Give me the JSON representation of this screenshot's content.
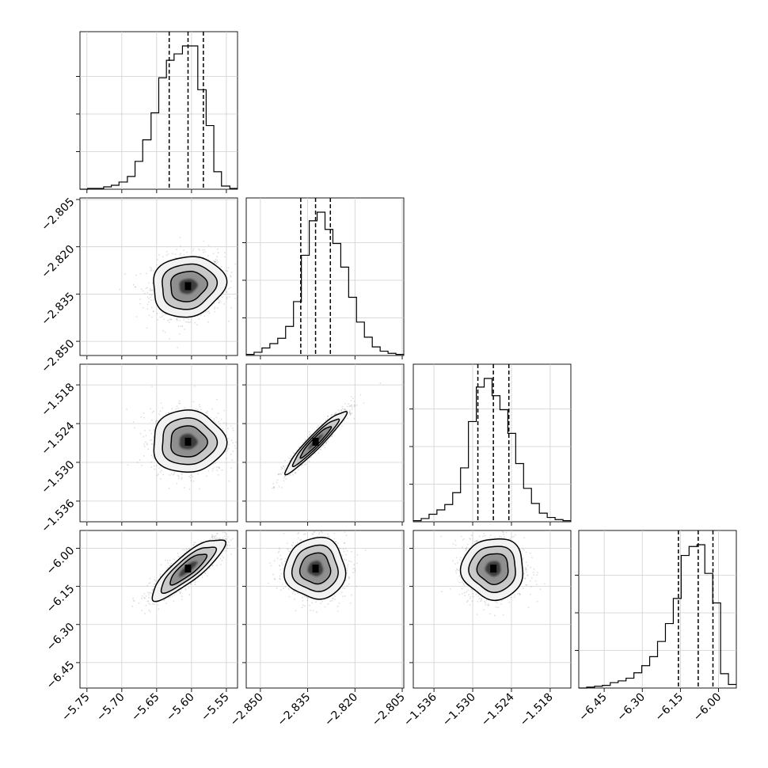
{
  "chart_data": {
    "type": "corner",
    "params": [
      {
        "ticks": [
          -5.75,
          -5.7,
          -5.65,
          -5.6,
          -5.55
        ],
        "tick_labels": [
          "−5.75",
          "−5.70",
          "−5.65",
          "−5.60",
          "−5.55"
        ],
        "range": [
          -5.76,
          -5.534
        ],
        "mean": -5.605,
        "sd": 0.026,
        "quantiles": [
          -5.632,
          -5.605,
          -5.583
        ]
      },
      {
        "ticks": [
          -2.85,
          -2.835,
          -2.82,
          -2.805
        ],
        "tick_labels": [
          "−2.850",
          "−2.835",
          "−2.820",
          "−2.805"
        ],
        "range": [
          -2.8545,
          -2.8045
        ],
        "mean": -2.8325,
        "sd": 0.0048,
        "quantiles": [
          -2.8372,
          -2.8325,
          -2.8278
        ]
      },
      {
        "ticks": [
          -1.536,
          -1.53,
          -1.524,
          -1.518
        ],
        "tick_labels": [
          "−1.536",
          "−1.530",
          "−1.524",
          "−1.518"
        ],
        "range": [
          -1.5392,
          -1.5148
        ],
        "mean": -1.5268,
        "sd": 0.0024,
        "quantiles": [
          -1.5292,
          -1.5268,
          -1.5244
        ]
      },
      {
        "ticks": [
          -6.45,
          -6.3,
          -6.15,
          -6.0
        ],
        "tick_labels": [
          "−6.45",
          "−6.30",
          "−6.15",
          "−6.00"
        ],
        "range": [
          -6.55,
          -5.93
        ],
        "mean": -6.08,
        "sd": 0.06,
        "quantiles": [
          -6.158,
          -6.08,
          -6.022
        ]
      }
    ],
    "histograms": [
      {
        "param": 0,
        "bin_edges": [
          -5.76,
          -5.749,
          -5.738,
          -5.726,
          -5.715,
          -5.704,
          -5.692,
          -5.681,
          -5.67,
          -5.658,
          -5.647,
          -5.636,
          -5.625,
          -5.613,
          -5.602,
          -5.591,
          -5.579,
          -5.568,
          -5.557,
          -5.545,
          -5.534
        ],
        "counts": [
          0,
          1,
          1,
          3,
          5,
          9,
          16,
          35,
          62,
          96,
          140,
          162,
          170,
          180,
          180,
          125,
          80,
          22,
          4,
          1
        ]
      },
      {
        "param": 1,
        "bin_edges": [
          -2.8545,
          -2.852,
          -2.8495,
          -2.847,
          -2.8445,
          -2.842,
          -2.8395,
          -2.837,
          -2.8345,
          -2.832,
          -2.8295,
          -2.827,
          -2.8245,
          -2.822,
          -2.8195,
          -2.817,
          -2.8145,
          -2.812,
          -2.8095,
          -2.807,
          -2.8045
        ],
        "counts": [
          1,
          3,
          7,
          11,
          16,
          27,
          50,
          93,
          125,
          133,
          117,
          104,
          82,
          54,
          31,
          17,
          8,
          4,
          2,
          1
        ]
      },
      {
        "param": 2,
        "bin_edges": [
          -1.5392,
          -1.53798,
          -1.53676,
          -1.53554,
          -1.53432,
          -1.5331,
          -1.53188,
          -1.53066,
          -1.52944,
          -1.52822,
          -1.527,
          -1.52578,
          -1.52456,
          -1.52334,
          -1.52212,
          -1.5209,
          -1.51968,
          -1.51846,
          -1.51724,
          -1.51602,
          -1.5148
        ],
        "counts": [
          1,
          3,
          7,
          11,
          16,
          27,
          50,
          93,
          125,
          133,
          117,
          104,
          82,
          54,
          31,
          17,
          8,
          4,
          2,
          1
        ]
      },
      {
        "param": 3,
        "bin_edges": [
          -6.55,
          -6.519,
          -6.488,
          -6.457,
          -6.426,
          -6.395,
          -6.364,
          -6.333,
          -6.302,
          -6.271,
          -6.24,
          -6.209,
          -6.178,
          -6.147,
          -6.116,
          -6.085,
          -6.054,
          -6.023,
          -5.992,
          -5.961,
          -5.93
        ],
        "counts": [
          0,
          1,
          2,
          3,
          6,
          8,
          11,
          17,
          25,
          35,
          52,
          72,
          100,
          148,
          158,
          160,
          128,
          95,
          16,
          4
        ]
      }
    ],
    "correlations": {
      "0-1": 0.1,
      "0-2": 0.0,
      "0-3": 0.85,
      "1-2": 0.95,
      "1-3": 0.0,
      "2-3": 0.0
    },
    "grid": true,
    "quantile_lines": "dashed"
  }
}
